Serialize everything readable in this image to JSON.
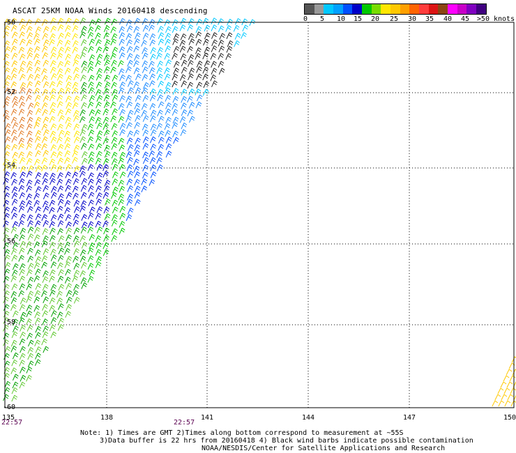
{
  "title": "ASCAT 25KM NOAA Winds 20160418 descending",
  "colorbar": {
    "colors": [
      "#555555",
      "#999999",
      "#00c8ff",
      "#00a0ff",
      "#0050ff",
      "#0000c8",
      "#00c800",
      "#78dc00",
      "#ffe600",
      "#ffc800",
      "#ffa000",
      "#ff6400",
      "#ff3c3c",
      "#dc1414",
      "#8b4513",
      "#ff00ff",
      "#c800c8",
      "#8000c0",
      "#400080"
    ],
    "tick_labels": [
      "0",
      "5",
      "10",
      "15",
      "20",
      "25",
      "30",
      "35",
      "40",
      "45",
      ">50 knots"
    ]
  },
  "map": {
    "lat_labels": [
      "-50",
      "-52",
      "-54",
      "-56",
      "-58",
      "-60"
    ],
    "lon_labels": [
      "135",
      "138",
      "141",
      "144",
      "147",
      "150"
    ],
    "times": [
      "22:57",
      "22:57"
    ]
  },
  "notes": {
    "line1": "Note: 1) Times are GMT 2)Times along bottom correspond to measurement at ~55S",
    "line2": "3)Data buffer is 22 hrs from 20160418 4) Black wind barbs indicate possible contamination",
    "line3": "NOAA/NESDIS/Center for Satellite Applications and Research"
  }
}
